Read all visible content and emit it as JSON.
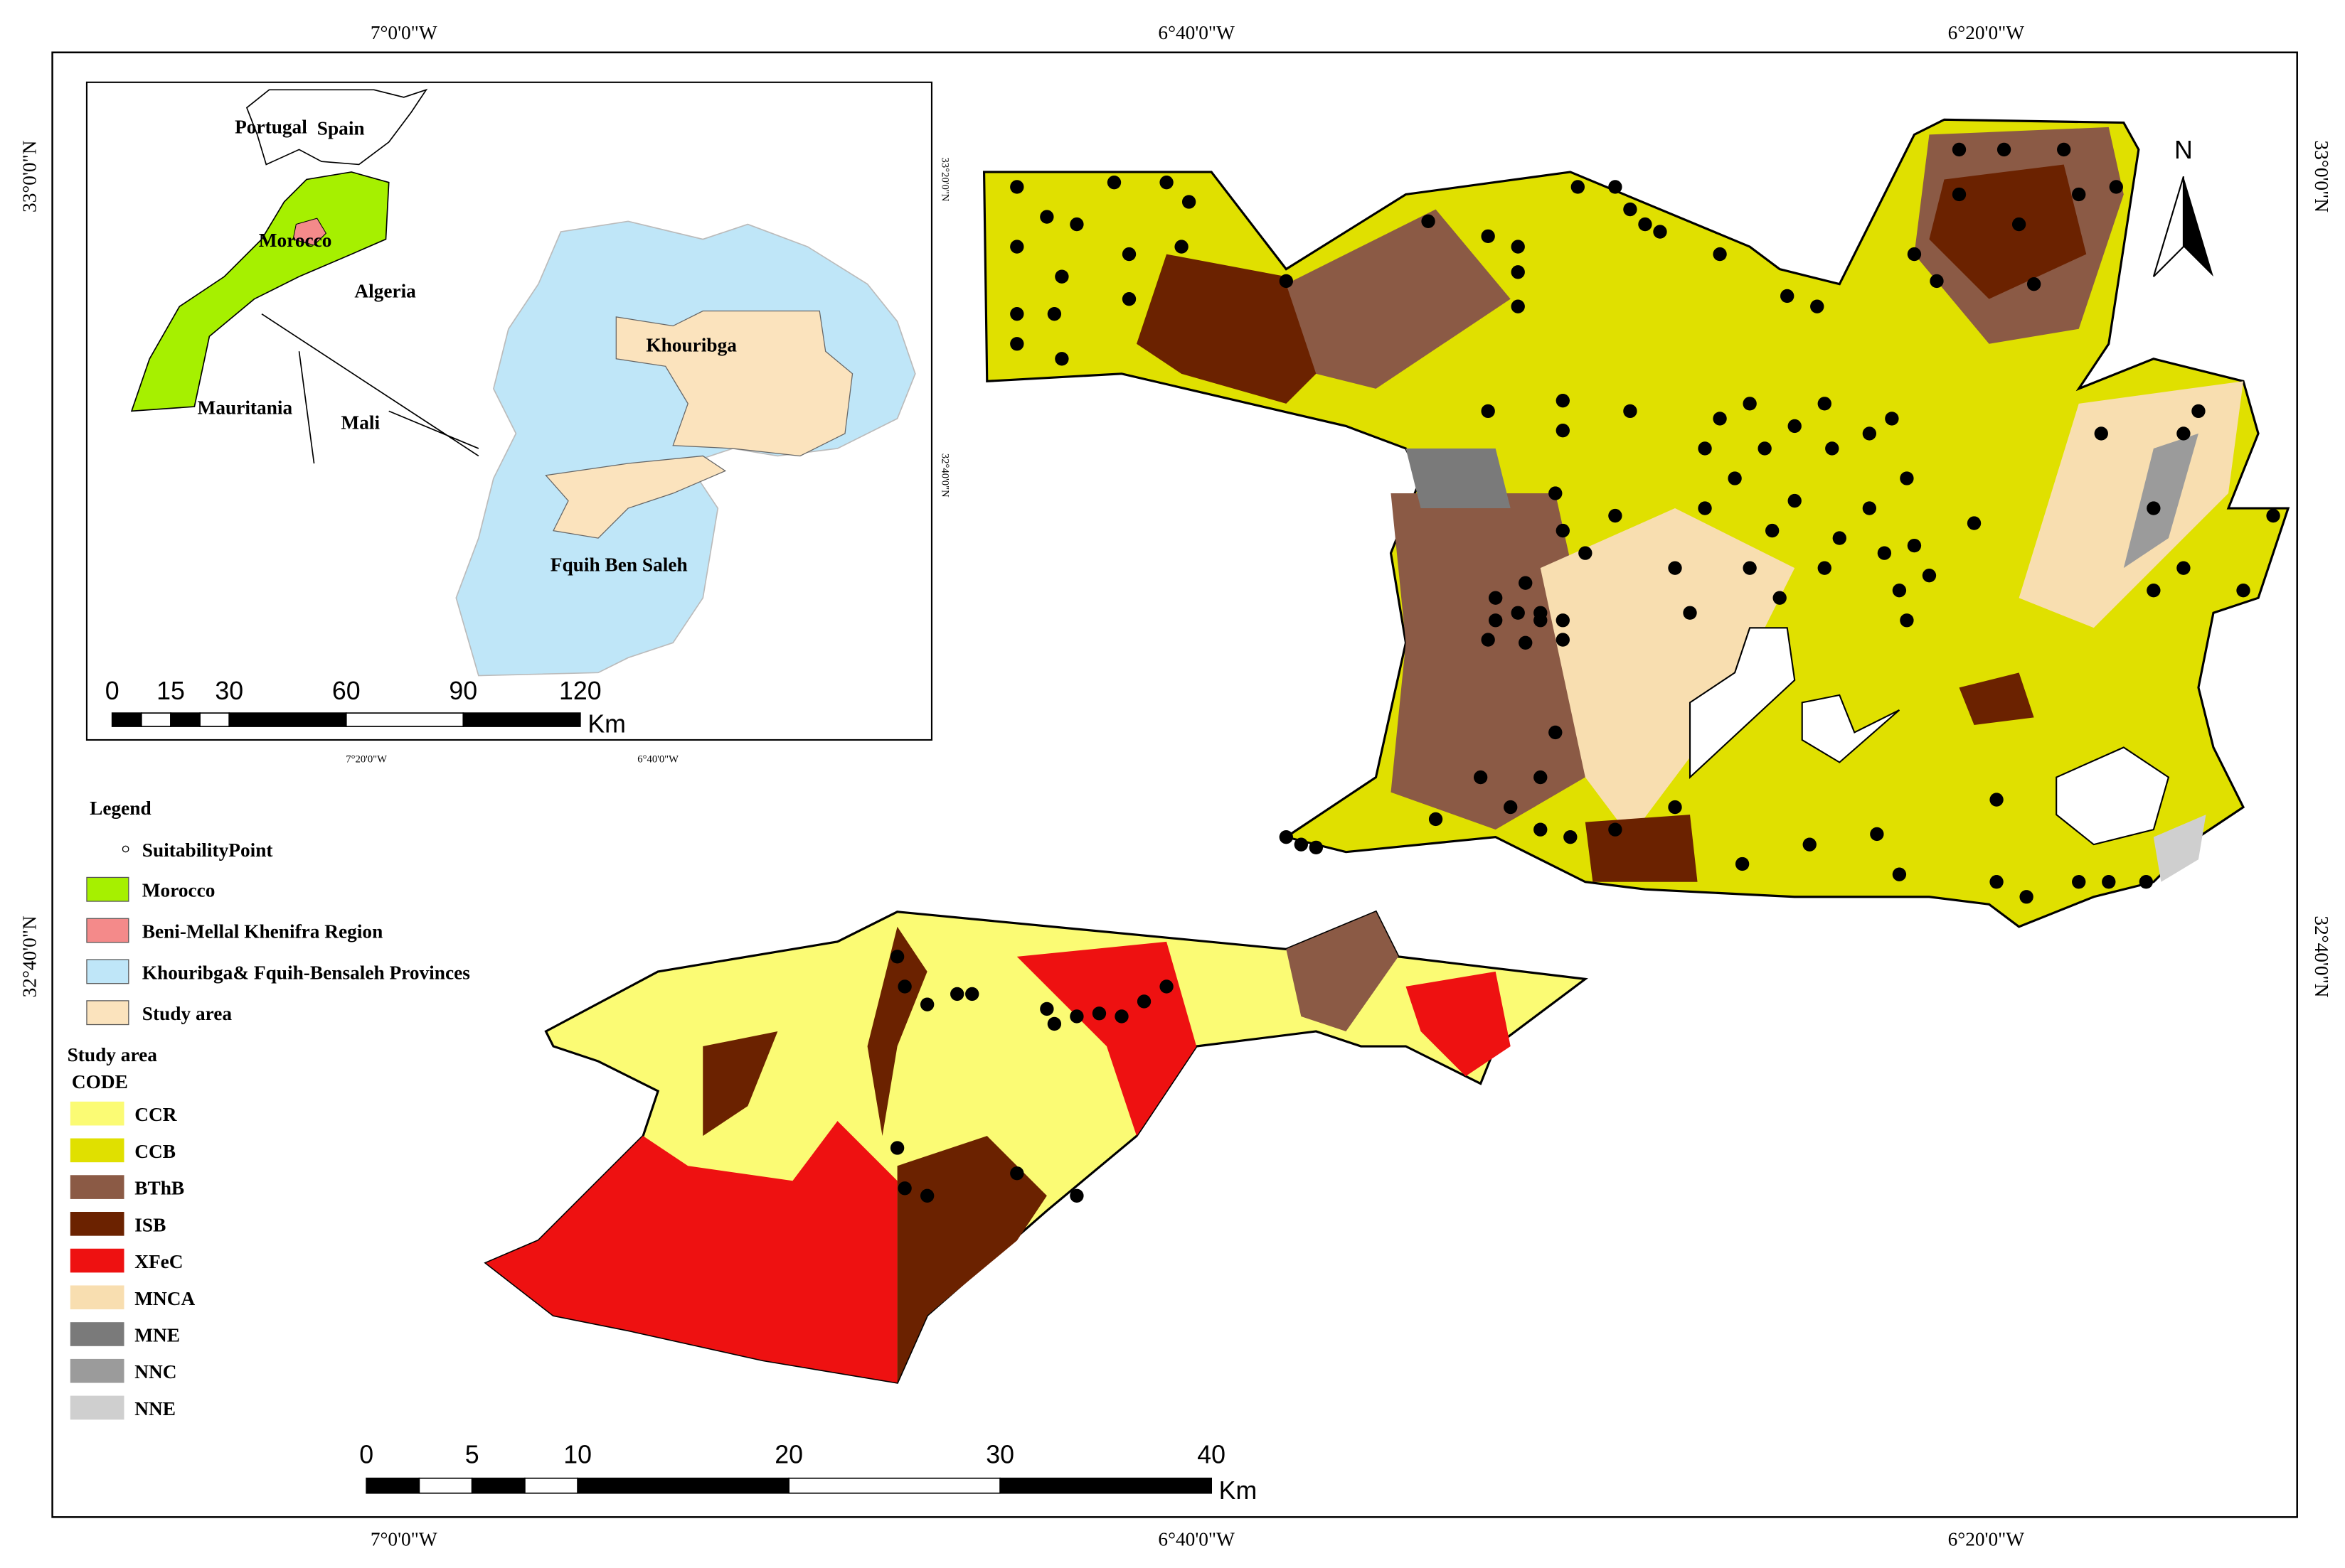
{
  "graticule": {
    "lon": [
      "7°0'0\"W",
      "6°40'0\"W",
      "6°20'0\"W"
    ],
    "lat": [
      "33°0'0\"N",
      "32°40'0\"N"
    ]
  },
  "north_arrow": "N",
  "inset": {
    "labels": {
      "portugal": "Portugal",
      "spain": "Spain",
      "morocco": "Morocco",
      "algeria": "Algeria",
      "mauritania": "Mauritania",
      "mali": "Mali",
      "khouribga": "Khouribga",
      "fquih": "Fquih Ben Saleh"
    },
    "lon": [
      "7°20'0\"W",
      "6°40'0\"W"
    ],
    "lat": [
      "33°20'0\"N",
      "32°40'0\"N"
    ],
    "scale": {
      "ticks": [
        0,
        15,
        30,
        60,
        90,
        120
      ],
      "unit": "Km"
    }
  },
  "legend": {
    "title": "Legend",
    "point": "SuitabilityPoint",
    "items": [
      {
        "label": "Morocco",
        "color": "#a6f000"
      },
      {
        "label": "Beni-Mellal Khenifra Region",
        "color": "#f48a8a"
      },
      {
        "label": "Khouribga& Fquih-Bensaleh Provinces",
        "color": "#bfe6f8"
      },
      {
        "label": "Study area",
        "color": "#fbe3bd"
      }
    ],
    "study_title": "Study area",
    "code_title": "CODE",
    "codes": [
      {
        "label": "CCR",
        "color": "#fbfb74"
      },
      {
        "label": "CCB",
        "color": "#e0e000"
      },
      {
        "label": "BThB",
        "color": "#8b5a45"
      },
      {
        "label": "ISB",
        "color": "#6b2200"
      },
      {
        "label": "XFeC",
        "color": "#ee1111"
      },
      {
        "label": "MNCA",
        "color": "#f8deb0"
      },
      {
        "label": "MNE",
        "color": "#7a7a7a"
      },
      {
        "label": "NNC",
        "color": "#9b9b9b"
      },
      {
        "label": "NNE",
        "color": "#cfcfcf"
      }
    ]
  },
  "scale": {
    "ticks": [
      0,
      5,
      10,
      20,
      30,
      40
    ],
    "unit": "Km"
  }
}
